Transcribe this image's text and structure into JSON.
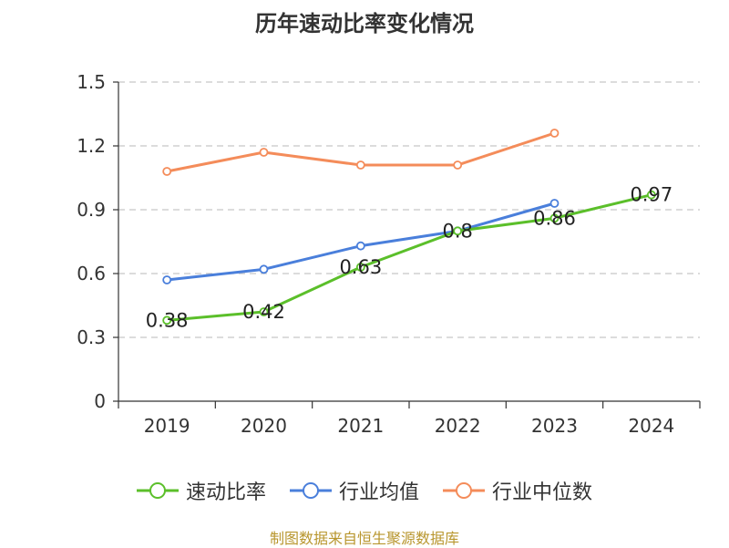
{
  "chart_data": {
    "type": "line",
    "title": "历年速动比率变化情况",
    "categories": [
      "2019",
      "2020",
      "2021",
      "2022",
      "2023",
      "2024"
    ],
    "ylim": [
      0,
      1.5
    ],
    "yticks": [
      "0",
      "0.3",
      "0.6",
      "0.9",
      "1.2",
      "1.5"
    ],
    "ytick_values": [
      0,
      0.3,
      0.6,
      0.9,
      1.2,
      1.5
    ],
    "grid": true,
    "legend_position": "bottom",
    "series": [
      {
        "name": "速动比率",
        "color": "#5bbf2a",
        "values": [
          0.38,
          0.42,
          0.63,
          0.8,
          0.86,
          0.97
        ],
        "labels": [
          "0.38",
          "0.42",
          "0.63",
          "0.8",
          "0.86",
          "0.97"
        ]
      },
      {
        "name": "行业均值",
        "color": "#4a7fdb",
        "values": [
          0.57,
          0.62,
          0.73,
          0.8,
          0.93,
          null
        ]
      },
      {
        "name": "行业中位数",
        "color": "#f48c5a",
        "values": [
          1.08,
          1.17,
          1.11,
          1.11,
          1.26,
          null
        ]
      }
    ]
  },
  "source": "制图数据来自恒生聚源数据库"
}
